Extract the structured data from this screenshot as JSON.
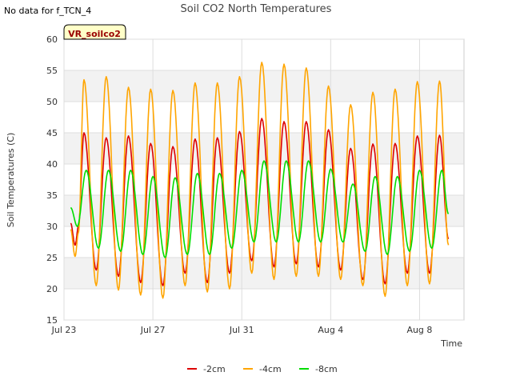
{
  "corner_note": "No data for f_TCN_4",
  "badge_label": "VR_soilco2",
  "chart_data": {
    "type": "line",
    "title": "Soil CO2 North Temperatures",
    "xlabel": "Time",
    "ylabel": "Soil Temperatures (C)",
    "ylim": [
      15,
      60
    ],
    "yticks": [
      15,
      20,
      25,
      30,
      35,
      40,
      45,
      50,
      55,
      60
    ],
    "xlim": [
      0,
      18
    ],
    "xticks": [
      {
        "x": 0,
        "label": "Jul 23"
      },
      {
        "x": 4,
        "label": "Jul 27"
      },
      {
        "x": 8,
        "label": "Jul 31"
      },
      {
        "x": 12,
        "label": "Aug 4"
      },
      {
        "x": 16,
        "label": "Aug 8"
      }
    ],
    "grid": true,
    "legend_position": "bottom",
    "series": [
      {
        "name": "-2cm",
        "color": "#dd0000",
        "points": [
          [
            0.3,
            30.5
          ],
          [
            0.5,
            27.0
          ],
          [
            0.65,
            30.0
          ],
          [
            0.9,
            45.0
          ],
          [
            1.45,
            23.0
          ],
          [
            1.9,
            44.2
          ],
          [
            2.45,
            22.0
          ],
          [
            2.9,
            44.5
          ],
          [
            3.45,
            21.0
          ],
          [
            3.9,
            43.3
          ],
          [
            4.45,
            20.5
          ],
          [
            4.9,
            42.8
          ],
          [
            5.45,
            22.5
          ],
          [
            5.9,
            44.0
          ],
          [
            6.45,
            21.0
          ],
          [
            6.9,
            44.2
          ],
          [
            7.45,
            22.5
          ],
          [
            7.9,
            45.2
          ],
          [
            8.45,
            24.5
          ],
          [
            8.9,
            47.3
          ],
          [
            9.45,
            23.5
          ],
          [
            9.9,
            46.8
          ],
          [
            10.45,
            24.0
          ],
          [
            10.9,
            46.8
          ],
          [
            11.45,
            23.5
          ],
          [
            11.9,
            45.5
          ],
          [
            12.45,
            23.0
          ],
          [
            12.9,
            42.5
          ],
          [
            13.45,
            21.5
          ],
          [
            13.9,
            43.2
          ],
          [
            14.45,
            20.8
          ],
          [
            14.9,
            43.3
          ],
          [
            15.45,
            22.5
          ],
          [
            15.9,
            44.5
          ],
          [
            16.45,
            22.5
          ],
          [
            16.9,
            44.6
          ],
          [
            17.3,
            28.0
          ]
        ]
      },
      {
        "name": "-4cm",
        "color": "#ffa500",
        "points": [
          [
            0.3,
            29.5
          ],
          [
            0.5,
            25.2
          ],
          [
            0.65,
            29.0
          ],
          [
            0.9,
            53.5
          ],
          [
            1.45,
            20.5
          ],
          [
            1.9,
            54.0
          ],
          [
            2.45,
            19.8
          ],
          [
            2.9,
            52.3
          ],
          [
            3.45,
            19.0
          ],
          [
            3.9,
            52.0
          ],
          [
            4.45,
            18.5
          ],
          [
            4.9,
            51.8
          ],
          [
            5.45,
            20.5
          ],
          [
            5.9,
            53.0
          ],
          [
            6.45,
            19.5
          ],
          [
            6.9,
            53.0
          ],
          [
            7.45,
            20.0
          ],
          [
            7.9,
            54.0
          ],
          [
            8.45,
            22.5
          ],
          [
            8.9,
            56.3
          ],
          [
            9.45,
            21.5
          ],
          [
            9.9,
            56.0
          ],
          [
            10.45,
            22.0
          ],
          [
            10.9,
            55.4
          ],
          [
            11.45,
            22.0
          ],
          [
            11.9,
            52.5
          ],
          [
            12.45,
            21.5
          ],
          [
            12.9,
            49.5
          ],
          [
            13.45,
            20.5
          ],
          [
            13.9,
            51.5
          ],
          [
            14.45,
            18.8
          ],
          [
            14.9,
            52.0
          ],
          [
            15.45,
            20.5
          ],
          [
            15.9,
            53.2
          ],
          [
            16.45,
            20.8
          ],
          [
            16.9,
            53.3
          ],
          [
            17.3,
            27.0
          ]
        ]
      },
      {
        "name": "-8cm",
        "color": "#00dd00",
        "points": [
          [
            0.3,
            33.0
          ],
          [
            0.6,
            30.0
          ],
          [
            1.0,
            39.0
          ],
          [
            1.55,
            26.5
          ],
          [
            2.0,
            39.0
          ],
          [
            2.55,
            26.0
          ],
          [
            3.0,
            39.0
          ],
          [
            3.55,
            25.5
          ],
          [
            4.0,
            38.0
          ],
          [
            4.55,
            25.0
          ],
          [
            5.0,
            37.8
          ],
          [
            5.55,
            25.5
          ],
          [
            6.0,
            38.5
          ],
          [
            6.55,
            25.5
          ],
          [
            7.0,
            38.5
          ],
          [
            7.55,
            26.5
          ],
          [
            8.0,
            39.0
          ],
          [
            8.55,
            27.5
          ],
          [
            9.0,
            40.5
          ],
          [
            9.55,
            27.5
          ],
          [
            10.0,
            40.5
          ],
          [
            10.55,
            27.5
          ],
          [
            11.0,
            40.5
          ],
          [
            11.55,
            27.5
          ],
          [
            12.0,
            39.2
          ],
          [
            12.55,
            27.5
          ],
          [
            13.0,
            36.8
          ],
          [
            13.55,
            26.0
          ],
          [
            14.0,
            38.0
          ],
          [
            14.55,
            25.5
          ],
          [
            15.0,
            38.0
          ],
          [
            15.55,
            26.0
          ],
          [
            16.0,
            39.0
          ],
          [
            16.55,
            26.5
          ],
          [
            17.0,
            39.0
          ],
          [
            17.3,
            32.0
          ]
        ]
      }
    ]
  }
}
